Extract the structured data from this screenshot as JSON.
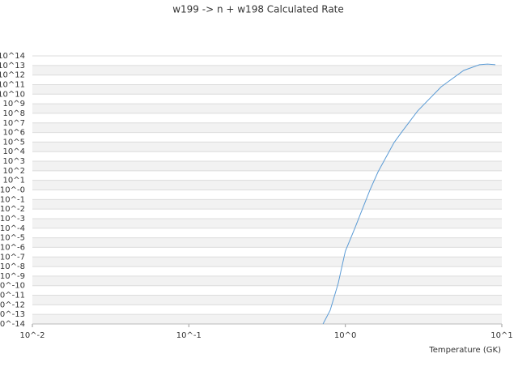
{
  "chart_data": {
    "type": "line",
    "title": "w199 -> n + w198 Calculated Rate",
    "x_label": "Temperature (GK)",
    "x_scale": "log",
    "y_scale": "log",
    "grid": true,
    "xlim": [
      0.01,
      10
    ],
    "ylim": [
      1e-14,
      100000000000000.0
    ],
    "xticks": [
      {
        "value": 0.01,
        "label": "10^-2"
      },
      {
        "value": 0.1,
        "label": "10^-1"
      },
      {
        "value": 1,
        "label": "10^0"
      },
      {
        "value": 10,
        "label": "10^1"
      }
    ],
    "yticks": [
      {
        "value": 1e-14,
        "label": "10^-14"
      },
      {
        "value": 1e-13,
        "label": "10^-13"
      },
      {
        "value": 1e-12,
        "label": "10^-12"
      },
      {
        "value": 1e-11,
        "label": "10^-11"
      },
      {
        "value": 1e-10,
        "label": "10^-10"
      },
      {
        "value": 1e-09,
        "label": "10^-9"
      },
      {
        "value": 1e-08,
        "label": "10^-8"
      },
      {
        "value": 1e-07,
        "label": "10^-7"
      },
      {
        "value": 1e-06,
        "label": "10^-6"
      },
      {
        "value": 1e-05,
        "label": "10^-5"
      },
      {
        "value": 0.0001,
        "label": "10^-4"
      },
      {
        "value": 0.001,
        "label": "10^-3"
      },
      {
        "value": 0.01,
        "label": "10^-2"
      },
      {
        "value": 0.1,
        "label": "10^-1"
      },
      {
        "value": 1,
        "label": "10^-0"
      },
      {
        "value": 10,
        "label": "10^1"
      },
      {
        "value": 100,
        "label": "10^2"
      },
      {
        "value": 1000,
        "label": "10^3"
      },
      {
        "value": 10000.0,
        "label": "10^4"
      },
      {
        "value": 100000.0,
        "label": "10^5"
      },
      {
        "value": 1000000.0,
        "label": "10^6"
      },
      {
        "value": 10000000.0,
        "label": "10^7"
      },
      {
        "value": 100000000.0,
        "label": "10^8"
      },
      {
        "value": 1000000000.0,
        "label": "10^9"
      },
      {
        "value": 10000000000.0,
        "label": "10^10"
      },
      {
        "value": 100000000000.0,
        "label": "10^11"
      },
      {
        "value": 1000000000000.0,
        "label": "10^12"
      },
      {
        "value": 10000000000000.0,
        "label": "10^13"
      },
      {
        "value": 100000000000000.0,
        "label": "10^14"
      }
    ],
    "x": [
      0.72,
      0.8,
      0.9,
      1.0,
      1.15,
      1.44,
      1.62,
      2.05,
      2.31,
      2.9,
      4.1,
      5.7,
      7.2,
      8.1,
      9.1
    ],
    "series": [
      {
        "color": "#5b9bd5",
        "values": [
          1e-14,
          2.7e-13,
          1.7e-10,
          4e-07,
          0.0001,
          1.1,
          80,
          90000.0,
          1300000.0,
          180000000.0,
          60000000000.0,
          3000000000000.0,
          12000000000000.0,
          14000000000000.0,
          12000000000000.0
        ]
      }
    ]
  }
}
